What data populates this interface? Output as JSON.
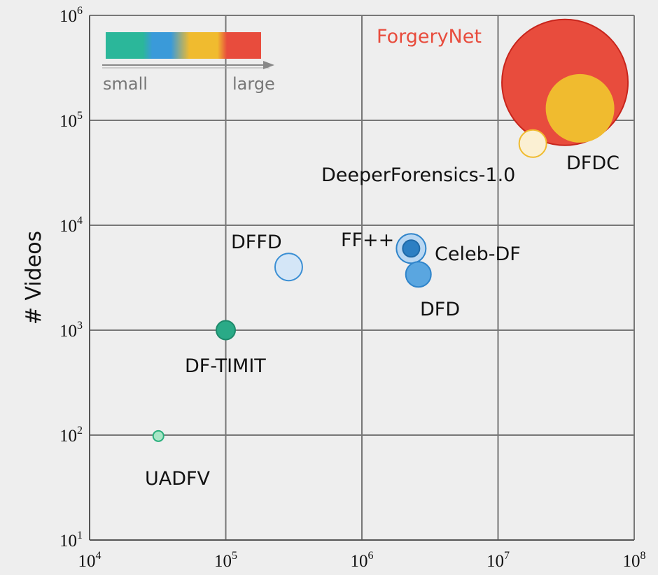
{
  "chart_data": {
    "type": "scatter",
    "xlabel": "",
    "ylabel": "# Videos",
    "x_scale": "log",
    "y_scale": "log",
    "xlim": [
      10000,
      100000000
    ],
    "ylim": [
      10,
      1000000
    ],
    "x_ticks": [
      {
        "base": "10",
        "exp": "4",
        "value": 10000
      },
      {
        "base": "10",
        "exp": "5",
        "value": 100000
      },
      {
        "base": "10",
        "exp": "6",
        "value": 1000000
      },
      {
        "base": "10",
        "exp": "7",
        "value": 10000000
      },
      {
        "base": "10",
        "exp": "8",
        "value": 100000000
      }
    ],
    "y_ticks": [
      {
        "base": "10",
        "exp": "1",
        "value": 10
      },
      {
        "base": "10",
        "exp": "2",
        "value": 100
      },
      {
        "base": "10",
        "exp": "3",
        "value": 1000
      },
      {
        "base": "10",
        "exp": "4",
        "value": 10000
      },
      {
        "base": "10",
        "exp": "5",
        "value": 100000
      },
      {
        "base": "10",
        "exp": "6",
        "value": 1000000
      }
    ],
    "grid": true,
    "size_legend": {
      "position": "top-left",
      "small_label": "small",
      "large_label": "large",
      "colors": [
        "#2bb79a",
        "#3a9ad9",
        "#f0bb2f",
        "#e84c3d"
      ]
    },
    "points": [
      {
        "name": "UADFV",
        "x": 32000,
        "y": 98,
        "size": 1,
        "color": "#a8e6c6",
        "stroke": "#2bb07e"
      },
      {
        "name": "DF-TIMIT",
        "x": 100000,
        "y": 1000,
        "size": 1.8,
        "color": "#2aaa87",
        "stroke": "#1e8a6b"
      },
      {
        "name": "DFFD",
        "x": 290000,
        "y": 4000,
        "size": 2.6,
        "color": "#d4e6f7",
        "stroke": "#3b8fd4"
      },
      {
        "name": "FF++",
        "x": 2300000,
        "y": 6000,
        "size": 2.8,
        "color": "#b9d7f2",
        "stroke": "#2f84ca"
      },
      {
        "name": "Celeb-DF",
        "x": 2300000,
        "y": 6000,
        "size": 1.6,
        "color": "#2c7fc3",
        "stroke": "#1f6aa8"
      },
      {
        "name": "DFD",
        "x": 2600000,
        "y": 3400,
        "size": 2.4,
        "color": "#5aa6e0",
        "stroke": "#2f84ca"
      },
      {
        "name": "DeeperForensics-1.0",
        "x": 18000000,
        "y": 60000,
        "size": 2.6,
        "color": "#fbf0d3",
        "stroke": "#f0bb2f"
      },
      {
        "name": "ForgeryNet",
        "x": 31000000,
        "y": 230000,
        "size": 12,
        "color": "#e84c3d",
        "stroke": "#c8251c"
      },
      {
        "name": "DFDC",
        "x": 40000000,
        "y": 130000,
        "size": 6.4,
        "color": "#f0bb2f",
        "stroke": "#f0bb2f"
      }
    ]
  }
}
